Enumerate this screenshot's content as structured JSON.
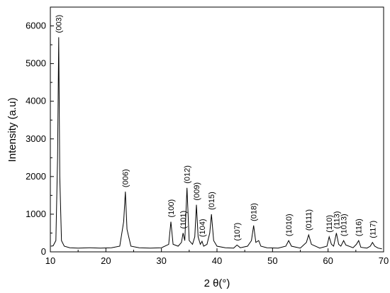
{
  "chart_data": {
    "type": "line",
    "title": "",
    "xlabel": "2 θ(°)",
    "ylabel": "Intensity (a.u)",
    "xlim": [
      10,
      70
    ],
    "ylim": [
      0,
      6500
    ],
    "x_ticks": [
      10,
      20,
      30,
      40,
      50,
      60,
      70
    ],
    "y_ticks": [
      0,
      1000,
      2000,
      3000,
      4000,
      5000,
      6000
    ],
    "grid": false,
    "legend": "none",
    "line_color": "#000000",
    "series": [
      {
        "x": [
          10.1,
          10.5,
          11.0,
          11.3,
          11.5,
          11.7,
          12.0,
          12.5,
          13.5,
          15,
          17,
          19,
          21,
          22.5,
          23.2,
          23.5,
          23.8,
          24.5,
          26,
          28,
          30,
          31.3,
          31.7,
          32.1,
          33,
          33.6,
          33.9,
          34.2,
          34.6,
          35.0,
          35.6,
          36.0,
          36.3,
          36.6,
          37.0,
          37.3,
          37.6,
          38.2,
          38.7,
          39.0,
          39.4,
          40,
          41.5,
          43,
          43.6,
          44.2,
          45.5,
          46.2,
          46.6,
          47.0,
          47.5,
          47.9,
          49,
          51,
          52.4,
          52.9,
          53.4,
          55,
          56.1,
          56.5,
          57.0,
          58.5,
          59.8,
          60.2,
          60.6,
          61.0,
          61.5,
          61.9,
          62.3,
          62.8,
          63.2,
          64.5,
          65.1,
          65.5,
          65.9,
          67.0,
          67.6,
          68.0,
          68.4,
          69.0,
          69.7
        ],
        "y": [
          150,
          160,
          300,
          2500,
          5700,
          2000,
          300,
          150,
          110,
          100,
          110,
          100,
          110,
          150,
          800,
          1600,
          600,
          150,
          110,
          100,
          110,
          200,
          800,
          200,
          150,
          250,
          500,
          300,
          1700,
          300,
          200,
          400,
          1250,
          400,
          200,
          280,
          150,
          200,
          500,
          1000,
          300,
          150,
          110,
          100,
          180,
          110,
          150,
          300,
          700,
          250,
          300,
          150,
          110,
          100,
          150,
          300,
          150,
          100,
          250,
          450,
          200,
          100,
          150,
          400,
          200,
          150,
          500,
          200,
          150,
          300,
          180,
          110,
          200,
          300,
          120,
          100,
          150,
          250,
          150,
          100,
          80
        ]
      }
    ],
    "annotations": [
      {
        "text": "(003)",
        "x": 11.5,
        "y": 5700
      },
      {
        "text": "(006)",
        "x": 23.5,
        "y": 1600
      },
      {
        "text": "(100)",
        "x": 31.7,
        "y": 800
      },
      {
        "text": "(101)",
        "x": 33.9,
        "y": 500
      },
      {
        "text": "(012)",
        "x": 34.6,
        "y": 1700
      },
      {
        "text": "(009)",
        "x": 36.3,
        "y": 1250
      },
      {
        "text": "(104)",
        "x": 37.3,
        "y": 280
      },
      {
        "text": "(015)",
        "x": 39.0,
        "y": 1000
      },
      {
        "text": "(107)",
        "x": 43.6,
        "y": 180
      },
      {
        "text": "(018)",
        "x": 46.6,
        "y": 700
      },
      {
        "text": "(1010)",
        "x": 52.9,
        "y": 300
      },
      {
        "text": "(0111)",
        "x": 56.5,
        "y": 450
      },
      {
        "text": "(110)",
        "x": 60.2,
        "y": 400
      },
      {
        "text": "(113)",
        "x": 61.5,
        "y": 500
      },
      {
        "text": "(1013)",
        "x": 62.8,
        "y": 300
      },
      {
        "text": "(116)",
        "x": 65.5,
        "y": 300
      },
      {
        "text": "(117)",
        "x": 68.0,
        "y": 250
      }
    ]
  }
}
